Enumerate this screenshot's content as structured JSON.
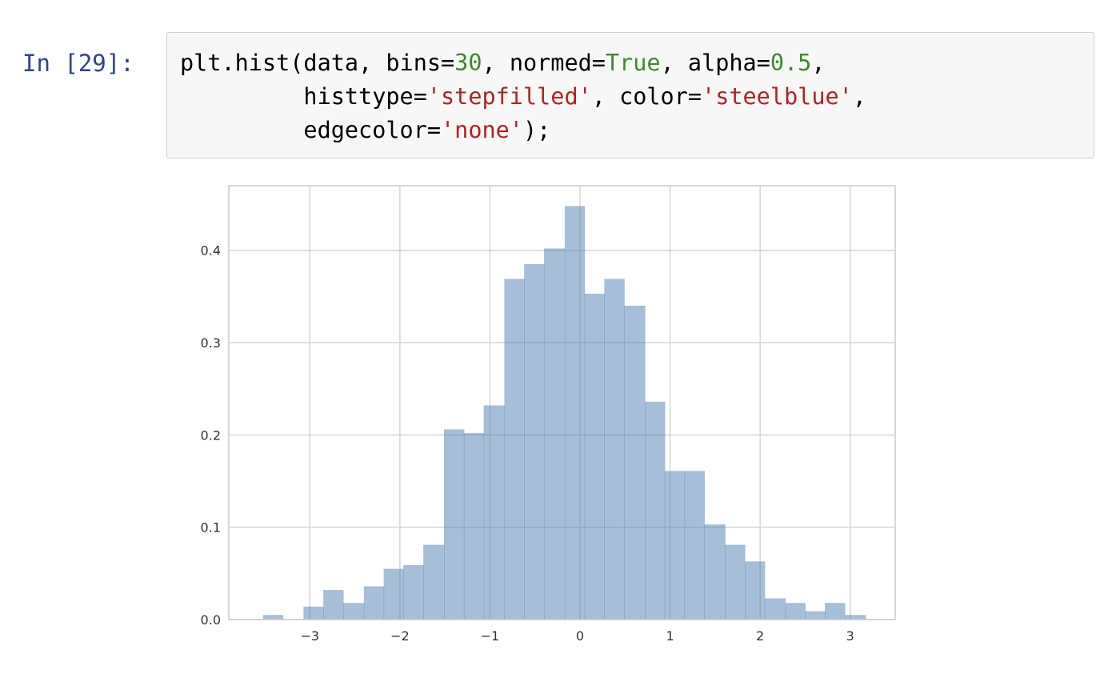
{
  "cell": {
    "prompt": "In [29]:",
    "code_lines": [
      [
        {
          "t": "plt.hist(data, bins=",
          "c": "plain"
        },
        {
          "t": "30",
          "c": "num"
        },
        {
          "t": ", normed=",
          "c": "plain"
        },
        {
          "t": "True",
          "c": "kw"
        },
        {
          "t": ", alpha=",
          "c": "plain"
        },
        {
          "t": "0.5",
          "c": "num"
        },
        {
          "t": ",",
          "c": "plain"
        }
      ],
      [
        {
          "t": "         histtype=",
          "c": "plain"
        },
        {
          "t": "'stepfilled'",
          "c": "str"
        },
        {
          "t": ", color=",
          "c": "plain"
        },
        {
          "t": "'steelblue'",
          "c": "str"
        },
        {
          "t": ",",
          "c": "plain"
        }
      ],
      [
        {
          "t": "         edgecolor=",
          "c": "plain"
        },
        {
          "t": "'none'",
          "c": "str"
        },
        {
          "t": ");",
          "c": "plain"
        }
      ]
    ]
  },
  "chart_data": {
    "type": "bar",
    "title": "",
    "xlabel": "",
    "ylabel": "",
    "xlim": [
      -3.9,
      3.5
    ],
    "ylim": [
      0,
      0.47
    ],
    "grid": true,
    "color": "#4f7eb2",
    "opacity": 0.5,
    "xticks": [
      -3,
      -2,
      -1,
      0,
      1,
      2,
      3
    ],
    "xtick_labels": [
      "−3",
      "−2",
      "−1",
      "0",
      "1",
      "2",
      "3"
    ],
    "yticks": [
      0.0,
      0.1,
      0.2,
      0.3,
      0.4
    ],
    "ytick_labels": [
      "0.0",
      "0.1",
      "0.2",
      "0.3",
      "0.4"
    ],
    "bin_edges": [
      -3.52,
      -3.3,
      -3.07,
      -2.85,
      -2.63,
      -2.4,
      -2.18,
      -1.96,
      -1.74,
      -1.51,
      -1.29,
      -1.07,
      -0.84,
      -0.62,
      -0.4,
      -0.17,
      0.05,
      0.27,
      0.49,
      0.72,
      0.94,
      1.16,
      1.38,
      1.61,
      1.83,
      2.05,
      2.28,
      2.5,
      2.72,
      2.94,
      3.17
    ],
    "values": [
      0.005,
      0.0,
      0.014,
      0.032,
      0.018,
      0.036,
      0.055,
      0.059,
      0.081,
      0.206,
      0.202,
      0.232,
      0.369,
      0.385,
      0.402,
      0.448,
      0.353,
      0.369,
      0.34,
      0.236,
      0.161,
      0.161,
      0.103,
      0.081,
      0.063,
      0.023,
      0.018,
      0.009,
      0.018,
      0.005
    ]
  }
}
